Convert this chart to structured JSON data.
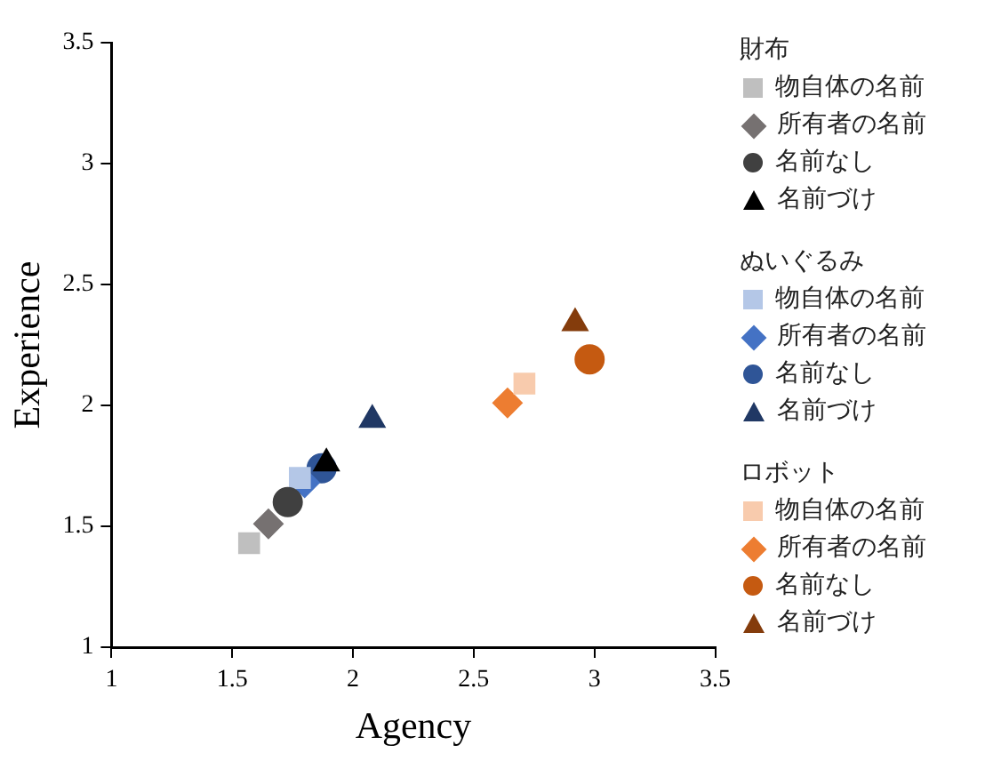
{
  "chart_data": {
    "type": "scatter",
    "xlabel": "Agency",
    "ylabel": "Experience",
    "xlim": [
      1,
      3.5
    ],
    "ylim": [
      1,
      3.5
    ],
    "xticks": [
      1,
      1.5,
      2,
      2.5,
      3,
      3.5
    ],
    "yticks": [
      1,
      1.5,
      2,
      2.5,
      3,
      3.5
    ],
    "grid": false,
    "legend": "right",
    "annotations": [
      "財布",
      "ぬいぐるみ",
      "ロボット"
    ],
    "series": [
      {
        "name": "物自体の名前",
        "color": "#bfbfbf",
        "marker": "square",
        "x": [
          1.57
        ],
        "values": [
          1.43
        ]
      },
      {
        "name": "所有者の名前",
        "color": "#767171",
        "marker": "diamond",
        "x": [
          1.65
        ],
        "values": [
          1.51
        ]
      },
      {
        "name": "名前なし",
        "color": "#404040",
        "marker": "circle",
        "x": [
          1.73
        ],
        "values": [
          1.6
        ]
      },
      {
        "name": "名前づけ",
        "color": "#000000",
        "marker": "triangle",
        "x": [
          1.89
        ],
        "values": [
          1.76
        ]
      },
      {
        "name": "物自体の名前",
        "color": "#b4c7e7",
        "marker": "square",
        "x": [
          1.78
        ],
        "values": [
          1.7
        ]
      },
      {
        "name": "所有者の名前",
        "color": "#4472c4",
        "marker": "diamond",
        "x": [
          1.8
        ],
        "values": [
          1.68
        ]
      },
      {
        "name": "名前なし",
        "color": "#2f5597",
        "marker": "circle",
        "x": [
          1.87
        ],
        "values": [
          1.74
        ]
      },
      {
        "name": "名前づけ",
        "color": "#203864",
        "marker": "triangle",
        "x": [
          2.08
        ],
        "values": [
          1.94
        ]
      },
      {
        "name": "物自体の名前",
        "color": "#f8cbad",
        "marker": "square",
        "x": [
          2.71
        ],
        "values": [
          2.09
        ]
      },
      {
        "name": "所有者の名前",
        "color": "#ed7d31",
        "marker": "diamond",
        "x": [
          2.64
        ],
        "values": [
          2.01
        ]
      },
      {
        "name": "名前なし",
        "color": "#c55a11",
        "marker": "circle",
        "x": [
          2.98
        ],
        "values": [
          2.19
        ]
      },
      {
        "name": "名前づけ",
        "color": "#843c0c",
        "marker": "triangle",
        "x": [
          2.92
        ],
        "values": [
          2.34
        ]
      }
    ]
  }
}
